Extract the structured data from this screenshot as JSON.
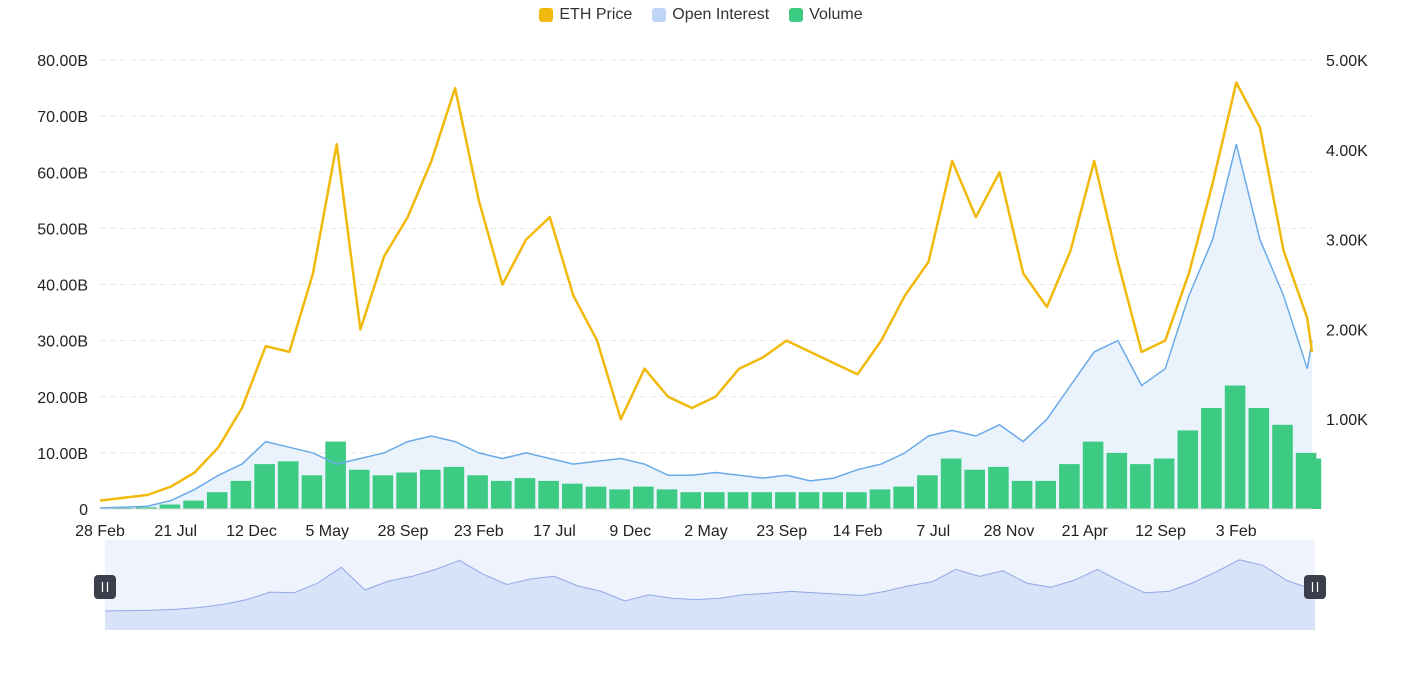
{
  "colors": {
    "eth_price": "#F0B90B",
    "open_interest": "#BFD4F6",
    "open_interest_line": "#6AAAE8",
    "open_interest_fill": "#EAF3FC",
    "volume": "#3DCB84",
    "grid": "#E8E8E8",
    "navigator_bg": "#EEF3FD",
    "navigator_fill": "#D8E2F8",
    "navigator_line": "#93A8E6",
    "handle": "#3A3F4B"
  },
  "legend": [
    {
      "name": "ETH Price",
      "color": "#F0B90B"
    },
    {
      "name": "Open Interest",
      "color": "#BFD4F6"
    },
    {
      "name": "Volume",
      "color": "#3DCB84"
    }
  ],
  "chart_data": {
    "type": "line",
    "title": "",
    "xlabel": "",
    "ylabel": "",
    "legend_position": "top-center",
    "grid": true,
    "x_ticks": [
      "28 Feb",
      "21 Jul",
      "12 Dec",
      "5 May",
      "28 Sep",
      "23 Feb",
      "17 Jul",
      "9 Dec",
      "2 May",
      "23 Sep",
      "14 Feb",
      "7 Jul",
      "28 Nov",
      "21 Apr",
      "12 Sep",
      "3 Feb"
    ],
    "y_left": {
      "ticks": [
        "0",
        "10.00B",
        "20.00B",
        "30.00B",
        "40.00B",
        "50.00B",
        "60.00B",
        "70.00B",
        "80.00B"
      ],
      "range": [
        0,
        80
      ]
    },
    "y_right": {
      "ticks": [
        "1.00K",
        "2.00K",
        "3.00K",
        "4.00K",
        "5.00K"
      ],
      "range": [
        0,
        5
      ]
    },
    "x_index": [
      0,
      5,
      10,
      15,
      20,
      25,
      30,
      35,
      40,
      45,
      50,
      55,
      60,
      65,
      70,
      75,
      80,
      85,
      90,
      95,
      100,
      105,
      110,
      115,
      120,
      125,
      130,
      135,
      140,
      145,
      150,
      155,
      160,
      165,
      170,
      175,
      180,
      185,
      190,
      195,
      200,
      205,
      210,
      215,
      220,
      225,
      230,
      235,
      240,
      245,
      250,
      255,
      256
    ],
    "series": [
      {
        "name": "ETH Price",
        "axis": "left",
        "unit": "B",
        "values": [
          1.5,
          2.0,
          2.5,
          4.0,
          6.5,
          11.0,
          18.0,
          29.0,
          28.0,
          42.0,
          65.0,
          32.0,
          45.0,
          52.0,
          62.0,
          75.0,
          55.0,
          40.0,
          48.0,
          52.0,
          38.0,
          30.0,
          16.0,
          25.0,
          20.0,
          18.0,
          20.0,
          25.0,
          27.0,
          30.0,
          28.0,
          26.0,
          24.0,
          30.0,
          38.0,
          44.0,
          62.0,
          52.0,
          60.0,
          42.0,
          36.0,
          46.0,
          62.0,
          44.0,
          28.0,
          30.0,
          42.0,
          58.0,
          76.0,
          68.0,
          46.0,
          34.0,
          28.0
        ]
      },
      {
        "name": "Open Interest",
        "axis": "left",
        "unit": "B",
        "values": [
          0.2,
          0.3,
          0.5,
          1.5,
          3.5,
          6.0,
          8.0,
          12.0,
          11.0,
          10.0,
          8.0,
          9.0,
          10.0,
          12.0,
          13.0,
          12.0,
          10.0,
          9.0,
          10.0,
          9.0,
          8.0,
          8.5,
          9.0,
          8.0,
          6.0,
          6.0,
          6.5,
          6.0,
          5.5,
          6.0,
          5.0,
          5.5,
          7.0,
          8.0,
          10.0,
          13.0,
          14.0,
          13.0,
          15.0,
          12.0,
          16.0,
          22.0,
          28.0,
          30.0,
          22.0,
          25.0,
          38.0,
          48.0,
          65.0,
          48.0,
          38.0,
          25.0,
          30.0
        ]
      },
      {
        "name": "Volume",
        "axis": "left",
        "unit": "B",
        "values": [
          0.1,
          0.2,
          0.3,
          0.8,
          1.5,
          3.0,
          5.0,
          8.0,
          8.5,
          6.0,
          12.0,
          7.0,
          6.0,
          6.5,
          7.0,
          7.5,
          6.0,
          5.0,
          5.5,
          5.0,
          4.5,
          4.0,
          3.5,
          4.0,
          3.5,
          3.0,
          3.0,
          3.0,
          3.0,
          3.0,
          3.0,
          3.0,
          3.0,
          3.5,
          4.0,
          6.0,
          9.0,
          7.0,
          7.5,
          5.0,
          5.0,
          8.0,
          12.0,
          10.0,
          8.0,
          9.0,
          14.0,
          18.0,
          22.0,
          18.0,
          15.0,
          10.0,
          9.0
        ]
      }
    ]
  }
}
